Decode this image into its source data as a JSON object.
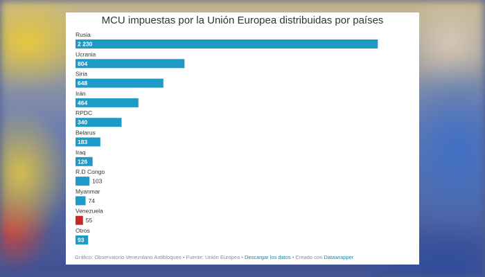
{
  "chart_data": {
    "type": "bar",
    "orientation": "horizontal",
    "title": "MCU impuestas por la Unión Europea distribuidas por países",
    "categories": [
      "Rusia",
      "Ucrania",
      "Siria",
      "Irán",
      "RPDC",
      "Belarus",
      "Iraq",
      "R.D Congo",
      "Myanmar",
      "Venezuela",
      "Otros"
    ],
    "values": [
      2230,
      804,
      648,
      464,
      340,
      183,
      126,
      103,
      74,
      55,
      93
    ],
    "value_labels": [
      "2 230",
      "804",
      "648",
      "464",
      "340",
      "183",
      "126",
      "103",
      "74",
      "55",
      "93"
    ],
    "xlim": [
      0,
      2300
    ],
    "bar_color": "#1d9bc6",
    "highlight_color": "#c62828",
    "highlight_category": "Venezuela",
    "grid": false
  },
  "footer": {
    "credit": "Gráfico: Observatorio Venezolano Antibloqueo • Fuente: Unión Europea • ",
    "download_label": "Descargar los datos",
    "created_with": " • Creado con ",
    "tool_label": "Datawrapper"
  }
}
